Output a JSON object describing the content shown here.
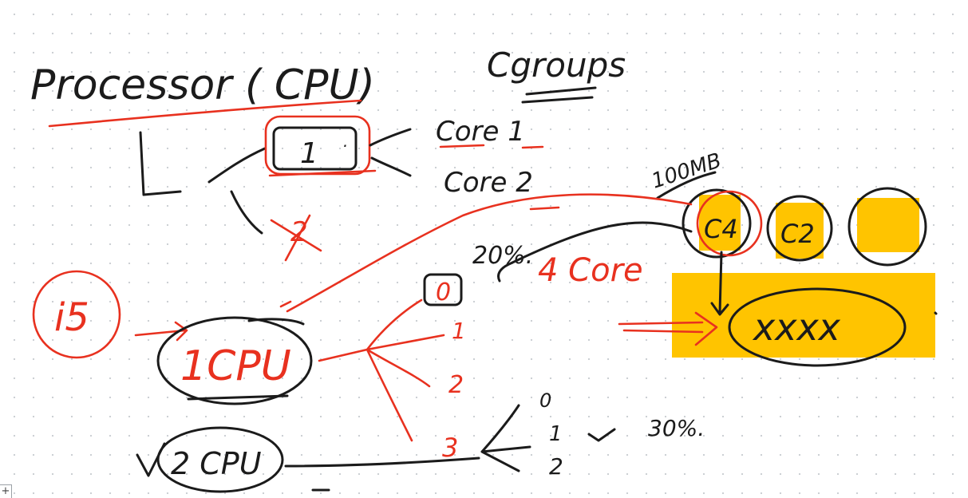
{
  "canvas": {
    "texts": {
      "processor_title": "Processor ( CPU)",
      "cgroups": "Cgroups",
      "box_one": "1",
      "box_dot": ".",
      "core_one": "Core  1",
      "core_two": "Core  2",
      "crossed_two": "2",
      "hundred_mb": "100MB",
      "c4": "C4",
      "c2": "C2",
      "percent_twenty": "20%.",
      "zero_boxed": "0",
      "four_core": "4 Core",
      "i5": "i5",
      "one_cpu": "1CPU",
      "num_1": "1",
      "num_2": "2",
      "num_3": "3",
      "xxx": "xxxx",
      "sub_0": "0",
      "sub_1": "1",
      "sub_2": "2",
      "percent_thirty": "30%.",
      "two_cpu": "2 CPU"
    },
    "colors": {
      "black_ink": "#1b1b1b",
      "red_ink": "#e8311f",
      "highlight": "#ffc400",
      "grid_dot": "#c9cdd2"
    }
  },
  "controls": {
    "add_button": "+"
  }
}
